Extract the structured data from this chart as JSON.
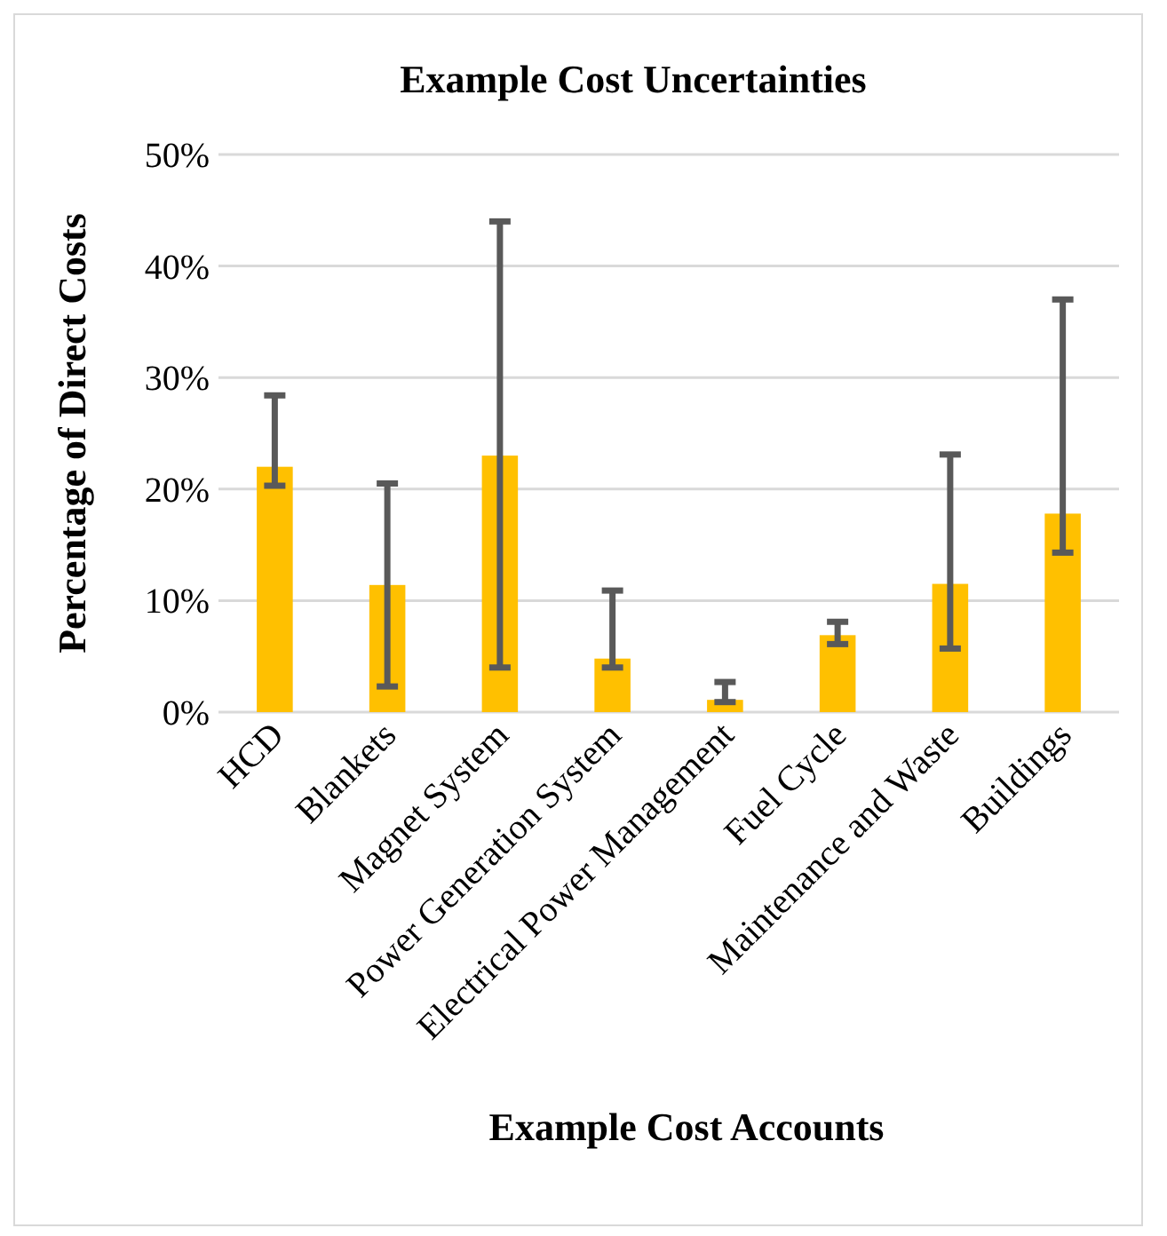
{
  "chart_data": {
    "type": "bar",
    "title": "Example Cost Uncertainties",
    "xlabel": "Example Cost Accounts",
    "ylabel": "Percentage of Direct Costs",
    "categories": [
      "HCD",
      "Blankets",
      "Magnet System",
      "Power Generation System",
      "Electrical Power Management",
      "Fuel Cycle",
      "Maintenance and Waste",
      "Buildings"
    ],
    "values": [
      22,
      11.4,
      23,
      4.8,
      1.1,
      6.9,
      11.5,
      17.8
    ],
    "errors": [
      [
        20.3,
        28.4
      ],
      [
        2.3,
        20.5
      ],
      [
        4,
        44
      ],
      [
        4,
        10.9
      ],
      [
        0.9,
        2.7
      ],
      [
        6.1,
        8.1
      ],
      [
        5.7,
        23.1
      ],
      [
        14.3,
        37
      ]
    ],
    "color": "#ffc000",
    "ylim": [
      0,
      50
    ],
    "yticks": [
      {
        "value": 0,
        "label": "0%"
      },
      {
        "value": 10,
        "label": "10%"
      },
      {
        "value": 20,
        "label": "20%"
      },
      {
        "value": 30,
        "label": "30%"
      },
      {
        "value": 40,
        "label": "40%"
      },
      {
        "value": 50,
        "label": "50%"
      }
    ],
    "grid": "y"
  }
}
